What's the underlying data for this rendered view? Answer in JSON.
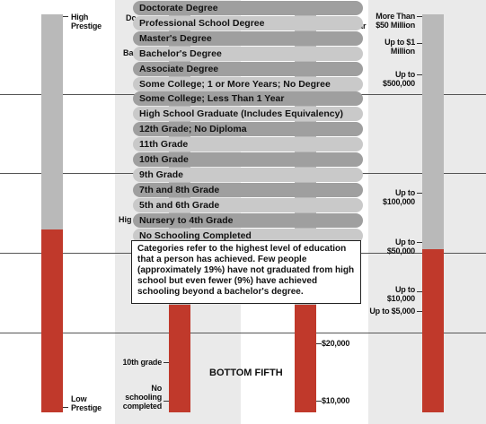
{
  "left_scale": {
    "top_label": "High Prestige",
    "bottom_label": "Low Prestige",
    "fill_level_percent": 46
  },
  "right_scale": {
    "labels": [
      "More Than $50 Million",
      "Up to $1 Million",
      "Up to $500,000",
      "Up to $100,000",
      "Up to $50,000",
      "Up to $10,000",
      "Up to $5,000"
    ],
    "fill_level_percent": 41
  },
  "middle_scale": {
    "labels": [
      "$20,000",
      "$10,000"
    ]
  },
  "education_scale": {
    "labels": [
      "10th grade",
      "No schooling completed"
    ],
    "band_title": "BOTTOM FIFTH"
  },
  "peek_text": {
    "top": "Dc",
    "second": "Ba",
    "right": "ar",
    "lower": "Hig"
  },
  "dropdown": {
    "items": [
      "Doctorate Degree",
      "Professional School Degree",
      "Master's Degree",
      "Bachelor's Degree",
      "Associate Degree",
      "Some College; 1 or More Years; No Degree",
      "Some College; Less Than 1 Year",
      "High School Graduate (Includes Equivalency)",
      "12th Grade; No Diploma",
      "11th Grade",
      "10th Grade",
      "9th Grade",
      "7th and 8th Grade",
      "5th and 6th Grade",
      "Nursery to 4th Grade",
      "No Schooling Completed"
    ]
  },
  "info_box": {
    "text": "Categories refer to the highest level of education that a person has achieved. Few people (approximately 19%) have not graduated from high school but even fewer (9%) have achieved schooling beyond a bachelor's degree."
  },
  "colors": {
    "fill": "#c0392b",
    "tube": "#b9b9b9",
    "band": "#eaeaea",
    "item_dark": "#9f9f9f",
    "item_light": "#c9c9c9"
  }
}
